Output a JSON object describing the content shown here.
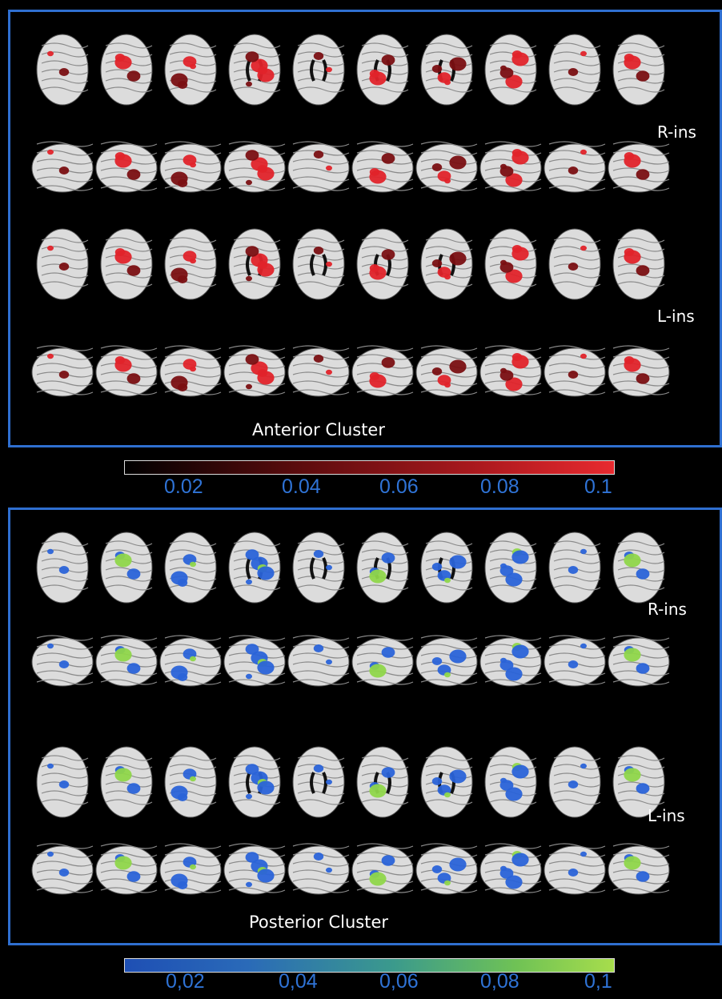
{
  "colors": {
    "frame": "#2f6fd0",
    "tick_text": "#2f73d6",
    "anterior_activation": "#e0232a",
    "anterior_dark": "#7a0f12",
    "posterior_activation": "#2a63d8",
    "posterior_peak": "#8fd64a"
  },
  "anterior": {
    "labels": {
      "r_ins": "R-ins",
      "l_ins": "L-ins"
    },
    "cluster_label": "Anterior Cluster",
    "colorbar_ticks": [
      "0.02",
      "0.04",
      "0.06",
      "0.08",
      "0.1"
    ],
    "colorbar_gradient": [
      "#000000",
      "#5a0b0d",
      "#b11a1f",
      "#e82a2f"
    ]
  },
  "posterior": {
    "labels": {
      "r_ins": "R-ins",
      "l_ins": "L-ins"
    },
    "cluster_label": "Posterior Cluster",
    "colorbar_ticks": [
      "0,02",
      "0,04",
      "0,06",
      "0,08",
      "0,1"
    ],
    "colorbar_gradient": [
      "#1e4fb4",
      "#2a6ab8",
      "#3b9a8c",
      "#6fc255",
      "#a7dd4c"
    ]
  }
}
